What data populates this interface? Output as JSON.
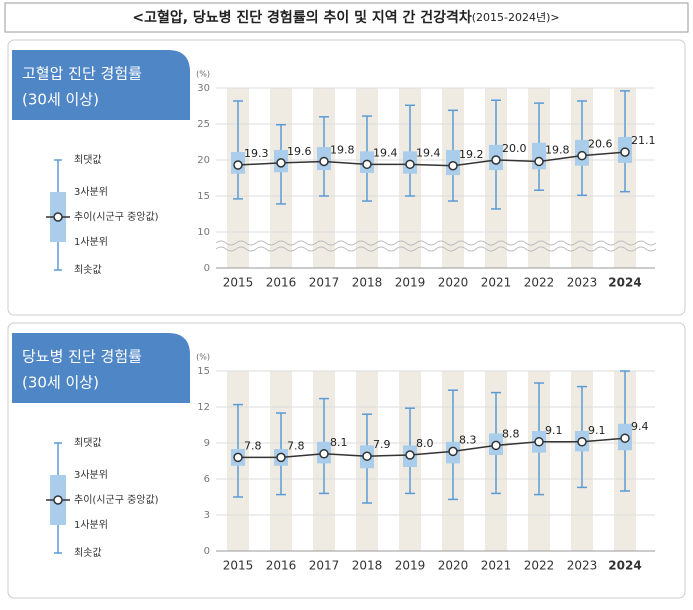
{
  "title": "<고혈압, 당뇨병 진단 경험률의 추이 및 지역 간 건강격차",
  "title_suffix": "(2015-2024년)>",
  "chart_data": [
    {
      "type": "box",
      "title": "고혈압 진단 경험률",
      "subtitle": "(30세 이상)",
      "y_unit": "(%)",
      "legend": [
        "최댓값",
        "3사분위",
        "추이(시군구 중앙값)",
        "1사분위",
        "최솟값"
      ],
      "categories": [
        "2015",
        "2016",
        "2017",
        "2018",
        "2019",
        "2020",
        "2021",
        "2022",
        "2023",
        "2024"
      ],
      "max": [
        28.2,
        24.9,
        26.0,
        26.1,
        27.6,
        26.9,
        28.3,
        27.9,
        28.2,
        29.6
      ],
      "q3": [
        21.1,
        21.4,
        21.8,
        21.2,
        21.2,
        21.4,
        22.1,
        22.4,
        22.8,
        23.2
      ],
      "median": [
        19.3,
        19.6,
        19.8,
        19.4,
        19.4,
        19.2,
        20.0,
        19.8,
        20.6,
        21.1
      ],
      "value_labels": [
        "19.3",
        "19.6",
        "19.8",
        "19.4",
        "19.4",
        "19.2",
        "20.0",
        "19.8",
        "20.6",
        "21.1"
      ],
      "q1": [
        18.1,
        18.3,
        18.6,
        18.2,
        18.1,
        17.9,
        18.6,
        18.7,
        19.2,
        19.6
      ],
      "min": [
        14.6,
        13.9,
        15.0,
        14.3,
        15.0,
        14.3,
        13.2,
        15.8,
        15.1,
        15.6
      ],
      "ylim": [
        0,
        30
      ],
      "yticks": [
        0,
        10,
        15,
        20,
        25,
        30
      ],
      "y_break": [
        0,
        10
      ],
      "box_color": "#a9cdea",
      "whisker_color": "#5b9bd5",
      "line_color": "#333333",
      "grid": true
    },
    {
      "type": "box",
      "title": "당뇨병 진단 경험률",
      "subtitle": "(30세 이상)",
      "y_unit": "(%)",
      "legend": [
        "최댓값",
        "3사분위",
        "추이(시군구 중앙값)",
        "1사분위",
        "최솟값"
      ],
      "categories": [
        "2015",
        "2016",
        "2017",
        "2018",
        "2019",
        "2020",
        "2021",
        "2022",
        "2023",
        "2024"
      ],
      "max": [
        12.2,
        11.5,
        12.7,
        11.4,
        11.9,
        13.4,
        13.2,
        14.0,
        13.7,
        15.0
      ],
      "q3": [
        8.5,
        8.5,
        9.1,
        8.8,
        8.8,
        9.1,
        9.8,
        10.0,
        10.0,
        10.6
      ],
      "median": [
        7.8,
        7.8,
        8.1,
        7.9,
        8.0,
        8.3,
        8.8,
        9.1,
        9.1,
        9.4
      ],
      "value_labels": [
        "7.8",
        "7.8",
        "8.1",
        "7.9",
        "8.0",
        "8.3",
        "8.8",
        "9.1",
        "9.1",
        "9.4"
      ],
      "q1": [
        7.1,
        7.1,
        7.3,
        6.9,
        7.0,
        7.3,
        8.0,
        8.2,
        8.3,
        8.4
      ],
      "min": [
        4.5,
        4.7,
        4.8,
        4.0,
        4.8,
        4.3,
        4.8,
        4.7,
        5.3,
        5.0
      ],
      "ylim": [
        0,
        15
      ],
      "yticks": [
        0,
        3,
        6,
        9,
        12,
        15
      ],
      "box_color": "#a9cdea",
      "whisker_color": "#5b9bd5",
      "line_color": "#333333",
      "grid": true
    }
  ]
}
